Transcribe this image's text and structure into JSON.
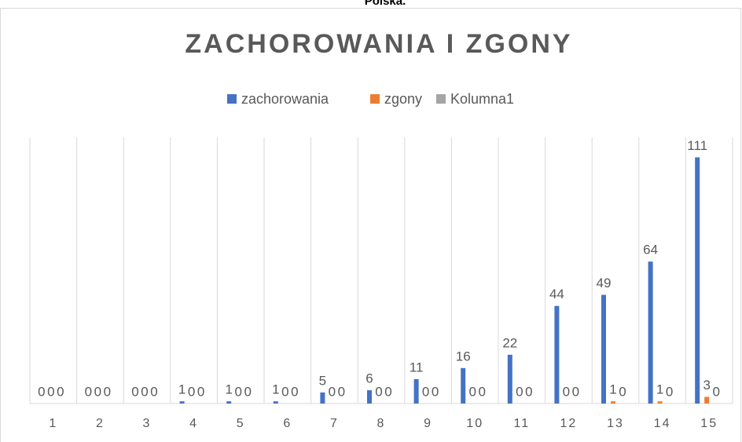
{
  "caption": "Polska.",
  "chart_data": {
    "type": "bar",
    "title": "ZACHOROWANIA I ZGONY",
    "categories": [
      "1",
      "2",
      "3",
      "4",
      "5",
      "6",
      "7",
      "8",
      "9",
      "10",
      "11",
      "12",
      "13",
      "14",
      "15"
    ],
    "series": [
      {
        "name": "zachorowania",
        "color": "#4472c4",
        "values": [
          0,
          0,
          0,
          1,
          1,
          1,
          5,
          6,
          11,
          16,
          22,
          44,
          49,
          64,
          111
        ]
      },
      {
        "name": "zgony",
        "color": "#ed7d31",
        "values": [
          0,
          0,
          0,
          0,
          0,
          0,
          0,
          0,
          0,
          0,
          0,
          0,
          1,
          1,
          3
        ]
      },
      {
        "name": "Kolumna1",
        "color": "#a5a5a5",
        "values": [
          0,
          0,
          0,
          0,
          0,
          0,
          0,
          0,
          0,
          0,
          0,
          0,
          0,
          0,
          0
        ]
      }
    ],
    "ylim": [
      0,
      120
    ],
    "legend": "top"
  }
}
